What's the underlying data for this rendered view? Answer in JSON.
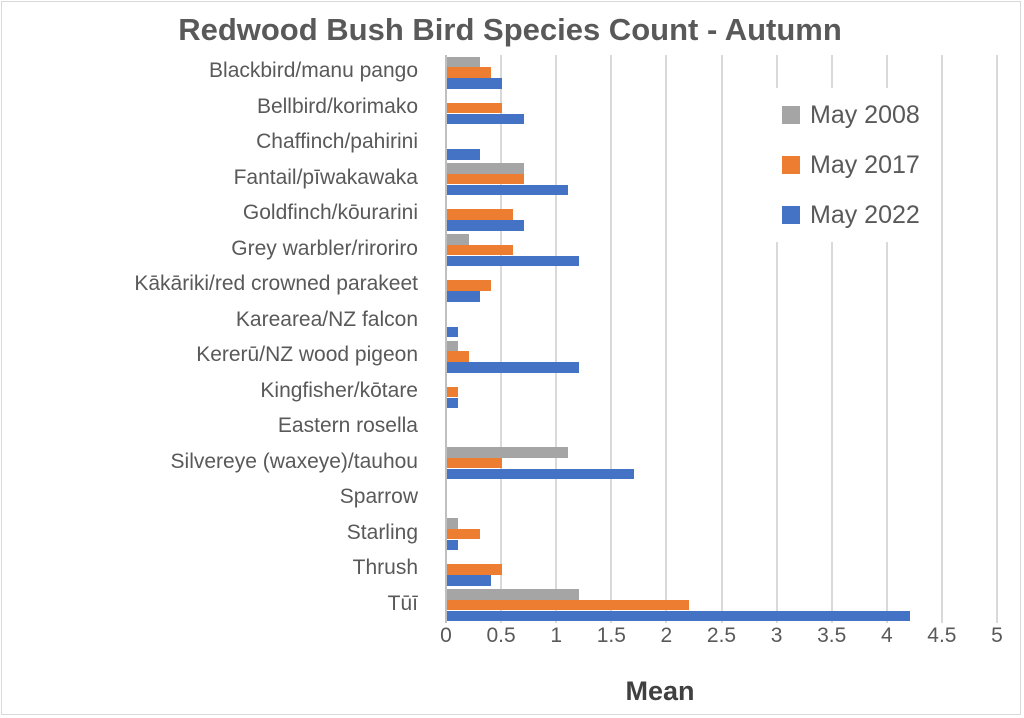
{
  "chart_data": {
    "type": "bar",
    "orientation": "horizontal",
    "title": "Redwood Bush Bird Species Count - Autumn",
    "xlabel": "Mean",
    "ylabel": "",
    "xlim": [
      0,
      5
    ],
    "x_ticks": [
      "0",
      "0.5",
      "1",
      "1.5",
      "2",
      "2.5",
      "3",
      "3.5",
      "4",
      "4.5",
      "5"
    ],
    "grid": true,
    "legend_position": "upper right (inside)",
    "categories": [
      "Blackbird/manu pango",
      "Bellbird/korimako",
      "Chaffinch/pahirini",
      "Fantail/pīwakawaka",
      "Goldfinch/kōurarini",
      "Grey warbler/riroriro",
      "Kākāriki/red crowned parakeet",
      "Karearea/NZ falcon",
      "Kererū/NZ wood pigeon",
      "Kingfisher/kōtare",
      "Eastern rosella",
      "Silvereye (waxeye)/tauhou",
      "Sparrow",
      "Starling",
      "Thrush",
      "Tūī"
    ],
    "series": [
      {
        "name": "May 2008",
        "color": "#a5a5a5",
        "values": [
          0.3,
          0,
          0,
          0.7,
          0,
          0.2,
          0,
          0,
          0.1,
          0,
          0,
          1.1,
          0,
          0.1,
          0,
          1.2
        ]
      },
      {
        "name": "May 2017",
        "color": "#ed7d31",
        "values": [
          0.4,
          0.5,
          0,
          0.7,
          0.6,
          0.6,
          0.4,
          0,
          0.2,
          0.1,
          0,
          0.5,
          0,
          0.3,
          0.5,
          2.2
        ]
      },
      {
        "name": "May 2022",
        "color": "#4472c4",
        "values": [
          0.5,
          0.7,
          0.3,
          1.1,
          0.7,
          1.2,
          0.3,
          0.1,
          1.2,
          0.1,
          0,
          1.7,
          0,
          0.1,
          0.4,
          4.2
        ]
      }
    ]
  }
}
